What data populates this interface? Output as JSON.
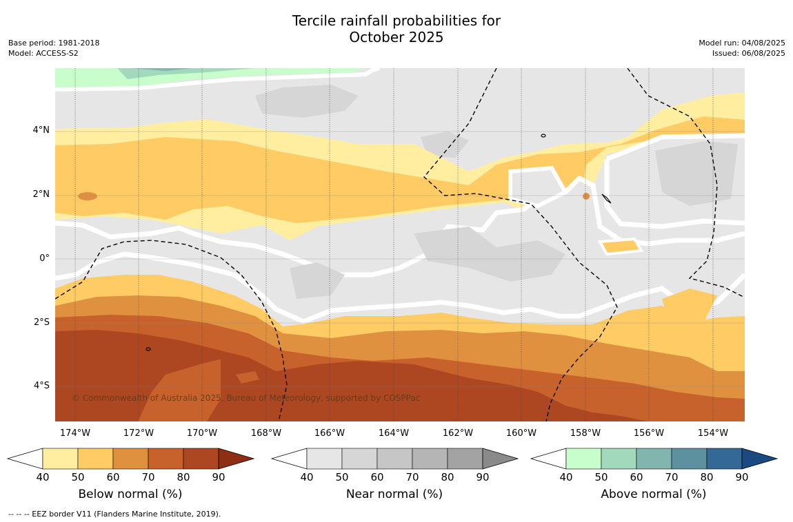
{
  "title_line1": "Tercile rainfall probabilities for",
  "title_line2": "October 2025",
  "meta_left": {
    "base_period": "Base period: 1981-2018",
    "model": "Model: ACCESS-S2"
  },
  "meta_right": {
    "model_run": "Model run: 04/08/2025",
    "issued": "Issued: 06/08/2025"
  },
  "latitude_labels": [
    "4°N",
    "2°N",
    "0°",
    "2°S",
    "4°S"
  ],
  "longitude_labels": [
    "174°W",
    "172°W",
    "170°W",
    "168°W",
    "166°W",
    "164°W",
    "162°W",
    "160°W",
    "158°W",
    "156°W",
    "154°W"
  ],
  "copyright": "© Commonwealth of Australia 2025, Bureau of Meteorology, supported by COSPPac",
  "footnote": "-- -- -- EEZ border V11 (Flanders Marine Institute, 2019).",
  "colorbars": [
    {
      "title": "Below normal (%)",
      "ticks": [
        "40",
        "50",
        "60",
        "70",
        "80",
        "90"
      ],
      "colors": [
        "#ffeda0",
        "#fecb65",
        "#e0913f",
        "#c8622d",
        "#ad4722",
        "#8e2e14"
      ]
    },
    {
      "title": "Near normal (%)",
      "ticks": [
        "40",
        "50",
        "60",
        "70",
        "80",
        "90"
      ],
      "colors": [
        "#e6e6e6",
        "#d6d6d6",
        "#c6c6c6",
        "#b5b5b5",
        "#a3a3a3",
        "#8a8a8a"
      ]
    },
    {
      "title": "Above normal (%)",
      "ticks": [
        "40",
        "50",
        "60",
        "70",
        "80",
        "90"
      ],
      "colors": [
        "#c8fdcc",
        "#a2d9bd",
        "#82b5ae",
        "#5e91a0",
        "#346896",
        "#1b4a82"
      ]
    }
  ]
}
